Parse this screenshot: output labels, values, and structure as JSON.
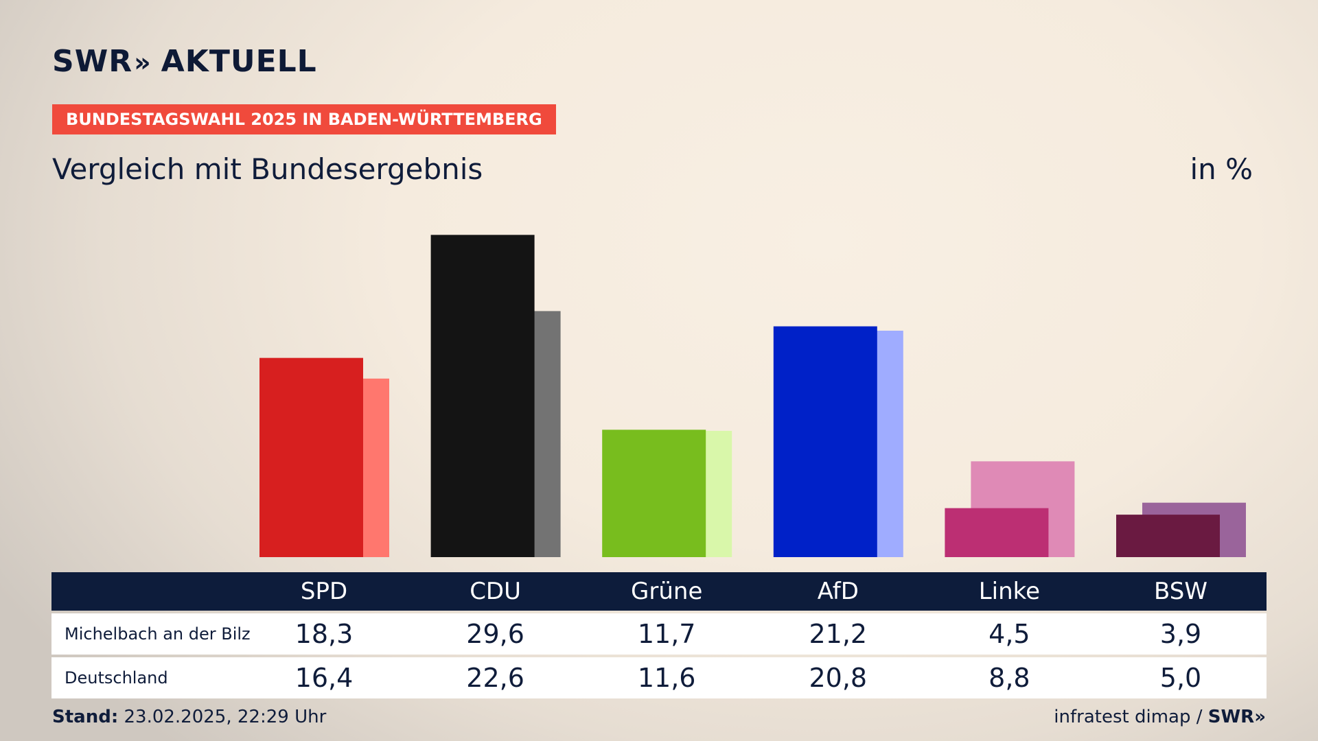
{
  "header": {
    "logo_left": "SWR",
    "logo_sep": "»",
    "logo_right": "AKTUELL",
    "tag": "BUNDESTAGSWAHL 2025 IN BADEN-WÜRTTEMBERG",
    "subtitle": "Vergleich mit Bundesergebnis",
    "unit": "in %"
  },
  "table": {
    "rows": [
      {
        "label": "Michelbach an der Bilz",
        "values": [
          "18,3",
          "29,6",
          "11,7",
          "21,2",
          "4,5",
          "3,9"
        ]
      },
      {
        "label": "Deutschland",
        "values": [
          "16,4",
          "22,6",
          "11,6",
          "20,8",
          "8,8",
          "5,0"
        ]
      }
    ]
  },
  "footer": {
    "stand_label": "Stand:",
    "stand_value": "23.02.2025, 22:29 Uhr",
    "source": "infratest dimap /",
    "brand": "SWR»"
  },
  "chart_data": {
    "type": "bar",
    "categories": [
      "SPD",
      "CDU",
      "Grüne",
      "AfD",
      "Linke",
      "BSW"
    ],
    "series": [
      {
        "name": "Michelbach an der Bilz",
        "values": [
          18.3,
          29.6,
          11.7,
          21.2,
          4.5,
          3.9
        ]
      },
      {
        "name": "Deutschland",
        "values": [
          16.4,
          22.6,
          11.6,
          20.8,
          8.8,
          5.0
        ]
      }
    ],
    "colors": {
      "local": [
        "#d71f1f",
        "#141414",
        "#78bd1e",
        "#0021c8",
        "#bc2f73",
        "#6a1a41"
      ],
      "national": [
        "#ff776e",
        "#737373",
        "#d9f7aa",
        "#9facff",
        "#df8ab6",
        "#9a649b"
      ]
    },
    "ylim": [
      0,
      30
    ],
    "grid": false,
    "legend": "none"
  }
}
